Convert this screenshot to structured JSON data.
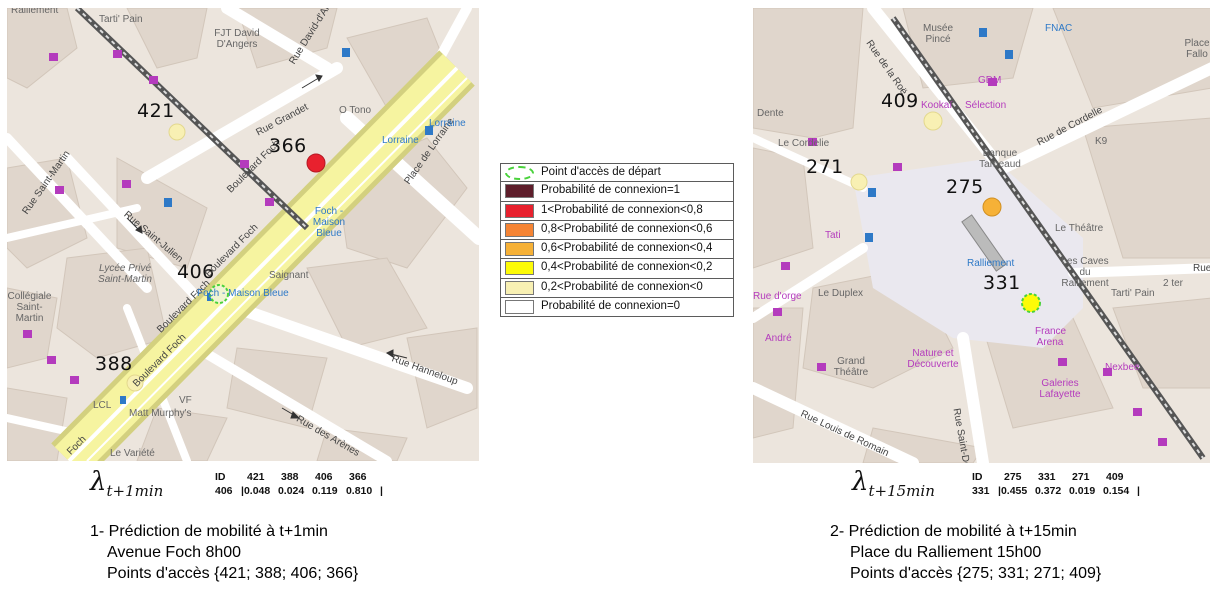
{
  "legend": {
    "items": [
      {
        "label": "Point d'accès de départ",
        "color": "#ffffff",
        "style": "dashed-circle"
      },
      {
        "label": "Probabilité de connexion=1",
        "color": "#5e1e2b"
      },
      {
        "label": "1<Probabilité de connexion<0,8",
        "color": "#e8212e"
      },
      {
        "label": "0,8<Probabilité de connexion<0,6",
        "color": "#f58434"
      },
      {
        "label": "0,6<Probabilité de connexion<0,4",
        "color": "#f6b137"
      },
      {
        "label": "0,4<Probabilité de connexion<0,2",
        "color": "#fdfb07"
      },
      {
        "label": "0,2<Probabilité de connexion<0",
        "color": "#f8f0b3"
      },
      {
        "label": "Probabilité de connexion=0",
        "color": "#ffffff"
      }
    ]
  },
  "left": {
    "access_points": [
      {
        "id": "421",
        "category": "0,2<Probabilité de connexion<0"
      },
      {
        "id": "366",
        "category": "1<Probabilité de connexion<0,8"
      },
      {
        "id": "406",
        "category": "Point d'accès de départ"
      },
      {
        "id": "388",
        "category": "0,2<Probabilité de connexion<0"
      }
    ],
    "street_labels": [
      "Boulevard Foch",
      "Boulevard Foch",
      "Boulevard Foch",
      "Boulevard Foch",
      "Rue Grandet",
      "Rue David-d'Angers",
      "Place de Lorraine",
      "Rue Saint-Julien",
      "Rue Saint-Martin",
      "Rue Hanneloup",
      "Rue des Arènes",
      "Foch"
    ],
    "place_labels": [
      "Tarti' Pain",
      "FJT David D'Angers",
      "O Tono",
      "Lorraine",
      "Lorraine",
      "Foch - Maison Bleue",
      "Saignant",
      "Foch - Maison Bleue",
      "Lycée Privé Saint-Martin",
      "Collégiale Saint-Martin",
      "Matt Murphy's",
      "LCL",
      "VF",
      "Le Variété",
      "Ralliement"
    ],
    "lambda": {
      "symbol": "λ",
      "subscript": "t+1min"
    },
    "table": {
      "header": [
        "ID",
        "421",
        "388",
        "406",
        "366"
      ],
      "row": [
        "406",
        "0.048",
        "0.024",
        "0.119",
        "0.810"
      ]
    },
    "caption": [
      "1- Prédiction de mobilité à t+1min",
      "Avenue Foch 8h00",
      "Points d'accès {421; 388; 406; 366}"
    ]
  },
  "right": {
    "access_points": [
      {
        "id": "409",
        "category": "0,2<Probabilité de connexion<0"
      },
      {
        "id": "271",
        "category": "0,2<Probabilité de connexion<0"
      },
      {
        "id": "275",
        "category": "0,6<Probabilité de connexion<0,4"
      },
      {
        "id": "331",
        "category": "Point d'accès de départ"
      }
    ],
    "street_labels": [
      "Rue de la Roë",
      "Rue de Cordelle",
      "Rue Saint-De",
      "Rue Louis de Romain",
      "Rue"
    ],
    "place_labels": [
      "Musée Pincé",
      "FNAC",
      "GDM",
      "Kookaï",
      "Sélection",
      "Banque Tarneaud",
      "K9",
      "Le Cordelie",
      "Le Théâtre",
      "Les Caves du Ralliement",
      "Tarti' Pain",
      "Ralliement",
      "France Arena",
      "Le Duplex",
      "Grand Théâtre",
      "Nature et Découverte",
      "Galeries Lafayette",
      "André",
      "Tati",
      "Dente",
      "Place Fallo",
      "Nexbee",
      "Rue d'orge",
      "2 ter"
    ],
    "lambda": {
      "symbol": "λ",
      "subscript": "t+15min"
    },
    "table": {
      "header": [
        "ID",
        "275",
        "331",
        "271",
        "409"
      ],
      "row": [
        "331",
        "0.455",
        "0.372",
        "0.019",
        "0.154"
      ]
    },
    "caption": [
      "2- Prédiction de mobilité à t+15min",
      "Place du Ralliement 15h00",
      "Points d'accès {275; 331; 271; 409}"
    ]
  }
}
